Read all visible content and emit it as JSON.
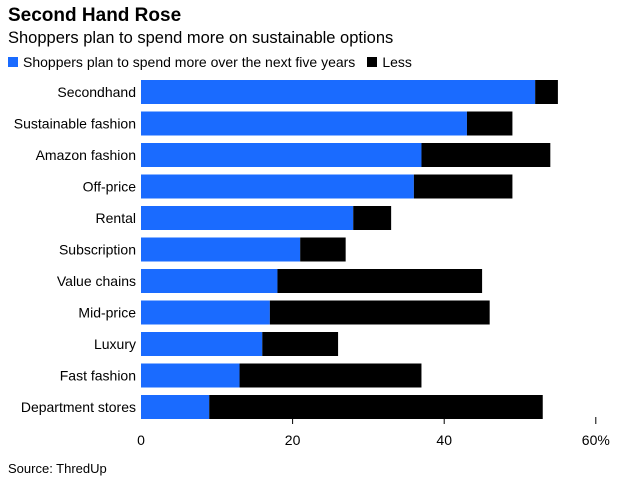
{
  "title": "Second Hand Rose",
  "subtitle": "Shoppers plan to spend more on sustainable options",
  "source": "Source: ThredUp",
  "colors": {
    "more": "#1a6bff",
    "less": "#000000"
  },
  "chart_data": {
    "type": "bar",
    "orientation": "horizontal",
    "stacked": true,
    "categories": [
      "Secondhand",
      "Sustainable fashion",
      "Amazon fashion",
      "Off-price",
      "Rental",
      "Subscription",
      "Value chains",
      "Mid-price",
      "Luxury",
      "Fast fashion",
      "Department stores"
    ],
    "series": [
      {
        "name": "Shoppers plan to spend more over the next five years",
        "values": [
          52,
          43,
          37,
          36,
          28,
          21,
          18,
          17,
          16,
          13,
          9
        ]
      },
      {
        "name": "Less",
        "values": [
          3,
          6,
          17,
          13,
          5,
          6,
          27,
          29,
          10,
          24,
          44
        ]
      }
    ],
    "xlim": [
      0,
      60
    ],
    "xticks": [
      "0",
      "20",
      "40",
      "60%"
    ],
    "xtick_values": [
      0,
      20,
      40,
      60
    ],
    "legend_position": "top-left",
    "grid": false
  }
}
